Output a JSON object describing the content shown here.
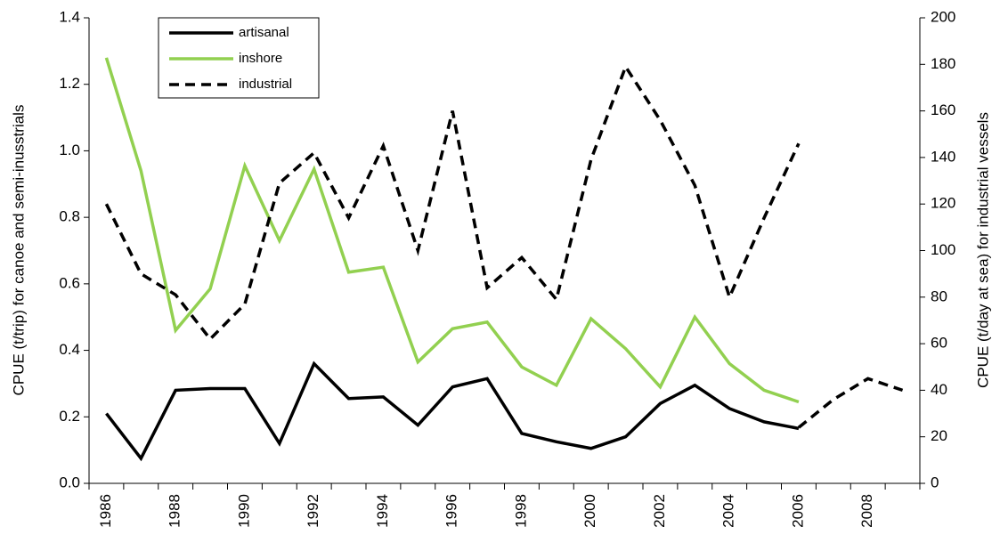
{
  "chart_data": {
    "type": "line",
    "categories": [
      "1986",
      null,
      "1988",
      null,
      "1990",
      null,
      "1992",
      null,
      "1994",
      null,
      "1996",
      null,
      "1998",
      null,
      "2000",
      null,
      "2002",
      null,
      "2004",
      null,
      "2006",
      null,
      "2008",
      null
    ],
    "y_label": "CPUE (t/trip) for canoe and semi-inusstrials",
    "y2_label": "CPUE (t/day at sea) for industrial vessels",
    "ylim": [
      0,
      1.4
    ],
    "yticks": [
      {
        "value": 0,
        "label": "0.0"
      },
      0.2,
      0.4,
      0.6,
      0.8,
      {
        "value": 1,
        "label": "1.0"
      },
      1.2,
      1.4
    ],
    "y2lim": [
      0,
      200
    ],
    "y2ticks": [
      0,
      20,
      40,
      60,
      80,
      100,
      120,
      140,
      160,
      180,
      200
    ],
    "legend": "top-left",
    "series": [
      {
        "name": "artisanal",
        "color": "#000000",
        "dash": "solid",
        "values": [
          0.21,
          0.075,
          0.28,
          0.285,
          0.285,
          0.12,
          0.36,
          0.255,
          0.26,
          0.175,
          0.29,
          0.315,
          0.15,
          0.125,
          0.105,
          0.14,
          0.24,
          0.295,
          0.225,
          0.185,
          0.165,
          null,
          null,
          null
        ]
      },
      {
        "name": "inshore",
        "color": "#92d050",
        "dash": "solid",
        "values": [
          1.28,
          0.94,
          0.46,
          0.585,
          0.955,
          0.73,
          0.945,
          0.635,
          0.65,
          0.365,
          0.465,
          0.485,
          0.35,
          0.295,
          0.495,
          0.405,
          0.29,
          0.5,
          0.36,
          0.28,
          0.245,
          null,
          null,
          null
        ]
      },
      {
        "name": "industrial",
        "color": "#000000",
        "dash": "dashed",
        "axis": "y2",
        "values": [
          120,
          90,
          81,
          62,
          77,
          129,
          142,
          114,
          145,
          100,
          160,
          84,
          97,
          79,
          139,
          179,
          156,
          128,
          80,
          114,
          146,
          null,
          null,
          null
        ]
      },
      {
        "color": "#000000",
        "dash": "dashed",
        "axis": "y2",
        "values": [
          null,
          null,
          null,
          null,
          null,
          null,
          null,
          null,
          null,
          null,
          null,
          null,
          null,
          null,
          null,
          null,
          null,
          null,
          null,
          null,
          24,
          36,
          45,
          40
        ]
      }
    ]
  }
}
